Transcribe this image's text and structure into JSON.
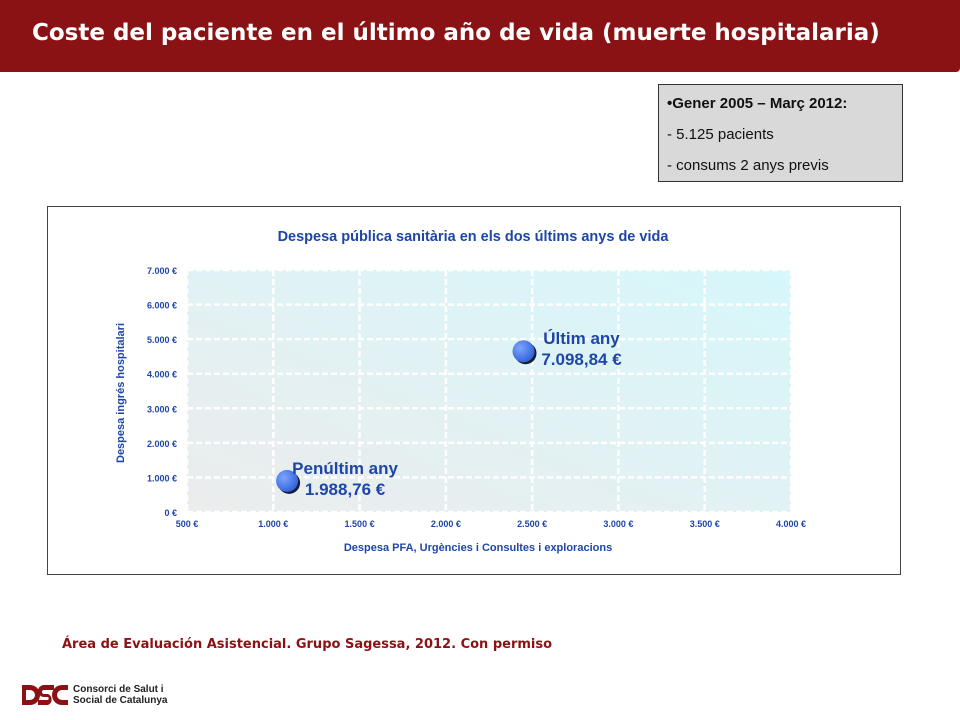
{
  "header": {
    "title": "Coste del paciente en el último año de vida (muerte hospitalaria)"
  },
  "info_box": {
    "line1": "•Gener 2005 – Març 2012:",
    "line2": "- 5.125 pacients",
    "line3": "- consums 2 anys previs"
  },
  "chart_data": {
    "type": "scatter",
    "title": "Despesa pública sanitària en els dos últims anys de vida",
    "xlabel": "Despesa PFA, Urgències i Consultes i exploracions",
    "ylabel": "Despesa ingrés hospitalari",
    "xlim": [
      500,
      4000
    ],
    "ylim": [
      0,
      7000
    ],
    "xticks": [
      500,
      1000,
      1500,
      2000,
      2500,
      3000,
      3500,
      4000
    ],
    "xtick_labels": [
      "500 €",
      "1.000 €",
      "1.500 €",
      "2.000 €",
      "2.500 €",
      "3.000 €",
      "3.500 €",
      "4.000 €"
    ],
    "yticks": [
      0,
      1000,
      2000,
      3000,
      4000,
      5000,
      6000,
      7000
    ],
    "ytick_labels": [
      "0 €",
      "1.000 €",
      "2.000 €",
      "3.000 €",
      "4.000 €",
      "5.000 €",
      "6.000 €",
      "7.000 €"
    ],
    "grid": true,
    "points": [
      {
        "label": "Penúltim any",
        "value_label": "1.988,76 €",
        "x": 1080,
        "y": 900
      },
      {
        "label": "Últim any",
        "value_label": "7.098,84 €",
        "x": 2450,
        "y": 4650
      }
    ],
    "point_color": "#3a6fe0"
  },
  "source": {
    "text": "Área de Evaluación Asistencial. Grupo Sagessa, 2012. Con permiso"
  },
  "logo": {
    "mark": "CSC",
    "line1": "Consorci de Salut i",
    "line2": "Social de Catalunya",
    "color": "#8b1214"
  }
}
